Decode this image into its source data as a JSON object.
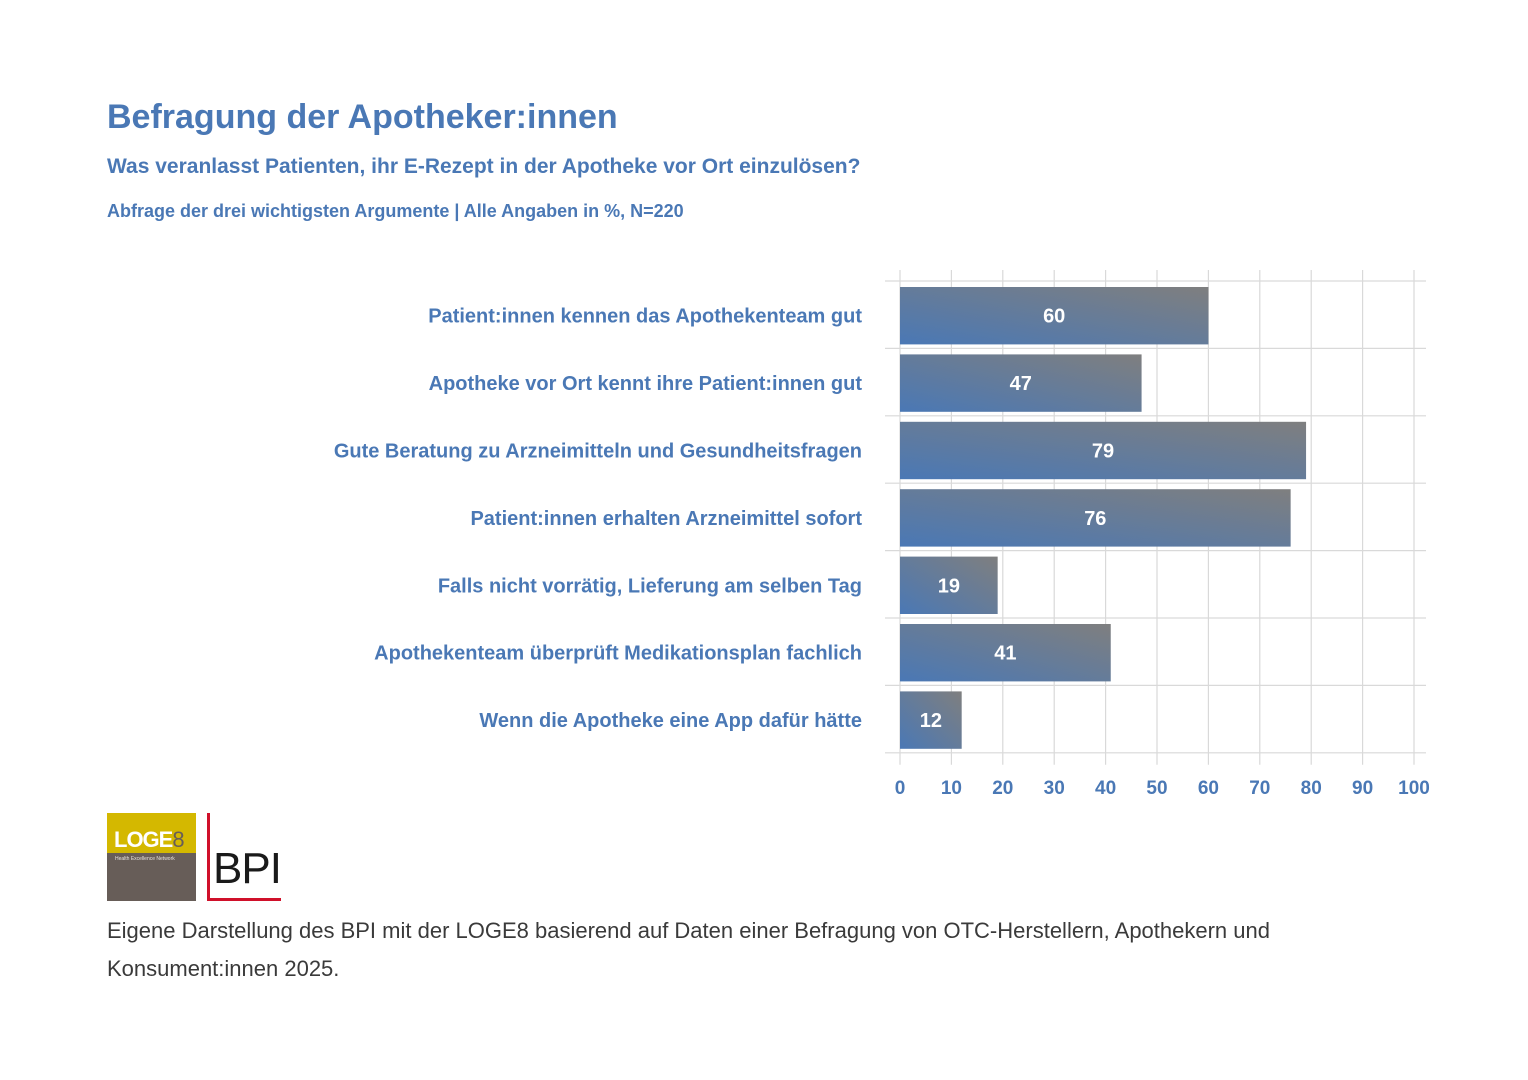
{
  "header": {
    "title": "Befragung der Apotheker:innen",
    "subtitle": "Was veranlasst Patienten, ihr E-Rezept in der Apotheke vor Ort einzulösen?",
    "note": "Abfrage der drei wichtigsten Argumente | Alle Angaben in %, N=220"
  },
  "chart_data": {
    "type": "bar",
    "orientation": "horizontal",
    "title": "Befragung der Apotheker:innen",
    "subtitle": "Was veranlasst Patienten, ihr E-Rezept in der Apotheke vor Ort einzulösen?",
    "xlabel": "",
    "ylabel": "",
    "categories": [
      "Patient:innen kennen das Apothekenteam gut",
      "Apotheke vor Ort kennt ihre Patient:innen gut",
      "Gute Beratung zu Arzneimitteln und Gesundheitsfragen",
      "Patient:innen erhalten Arzneimittel sofort",
      "Falls nicht vorrätig, Lieferung am selben Tag",
      "Apothekenteam überprüft Medikationsplan fachlich",
      "Wenn die Apotheke eine App dafür hätte"
    ],
    "values": [
      60,
      47,
      79,
      76,
      19,
      41,
      12
    ],
    "xlim": [
      0,
      100
    ],
    "xticks": [
      "0",
      "10",
      "20",
      "30",
      "40",
      "50",
      "60",
      "70",
      "80",
      "90",
      "100"
    ],
    "grid": true,
    "legend": "none",
    "colors": {
      "bar_start": "#4a78b5",
      "bar_end": "#7f7f7f",
      "text": "#4a78b5",
      "grid": "#d9d9d9"
    }
  },
  "logos": {
    "loge8_main": "LOGE",
    "loge8_digit": "8",
    "loge8_tagline": "Health Excellence Network",
    "bpi": "BPI"
  },
  "footer": {
    "source": "Eigene Darstellung des BPI mit der LOGE8 basierend auf Daten einer Befragung von OTC-Herstellern, Apothekern und Konsument:innen 2025."
  }
}
